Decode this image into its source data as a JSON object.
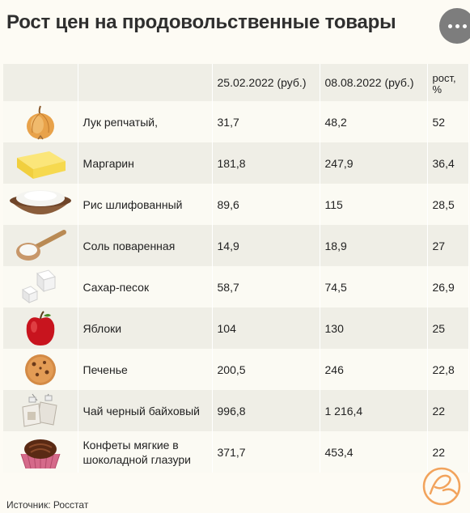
{
  "title": "Рост цен на продовольственные товары",
  "table": {
    "headers": {
      "date1": "25.02.2022 (руб.)",
      "date2": "08.08.2022 (руб.)",
      "growth": "рост, %"
    },
    "rows": [
      {
        "icon": "onion-icon",
        "name": "Лук репчатый,",
        "price1": "31,7",
        "price2": "48,2",
        "growth": "52"
      },
      {
        "icon": "margarine-icon",
        "name": "Маргарин",
        "price1": "181,8",
        "price2": "247,9",
        "growth": "36,4"
      },
      {
        "icon": "rice-bowl-icon",
        "name": "Рис шлифованный",
        "price1": "89,6",
        "price2": "115",
        "growth": "28,5"
      },
      {
        "icon": "salt-spoon-icon",
        "name": "Соль поваренная",
        "price1": "14,9",
        "price2": "18,9",
        "growth": "27"
      },
      {
        "icon": "sugar-cubes-icon",
        "name": "Сахар-песок",
        "price1": "58,7",
        "price2": "74,5",
        "growth": "26,9"
      },
      {
        "icon": "apple-icon",
        "name": "Яблоки",
        "price1": "104",
        "price2": "130",
        "growth": "25"
      },
      {
        "icon": "cookie-icon",
        "name": "Печенье",
        "price1": "200,5",
        "price2": "246",
        "growth": "22,8"
      },
      {
        "icon": "tea-bag-icon",
        "name": "Чай черный байховый",
        "price1": "996,8",
        "price2": "1 216,4",
        "growth": "22"
      },
      {
        "icon": "candy-icon",
        "name": "Конфеты мягкие в шоколадной глазури",
        "price1": "371,7",
        "price2": "453,4",
        "growth": "22"
      }
    ]
  },
  "source": "Источник: Росстат",
  "colors": {
    "background": "#fdfbf4",
    "row_alt": "#efeee6",
    "logo_accent": "#f2a35c",
    "menu_button": "#7d7d7d"
  }
}
